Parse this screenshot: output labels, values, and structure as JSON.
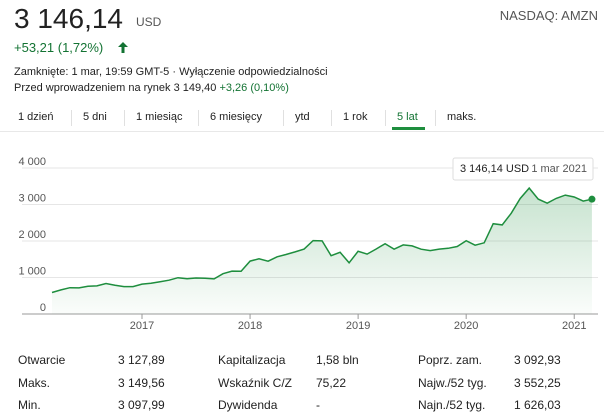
{
  "header": {
    "price": "3 146,14",
    "currency": "USD",
    "exchange": "NASDAQ: AMZN",
    "change": "+53,21 (1,72%)",
    "closed": "Zamknięte: 1 mar, 19:59 GMT-5 · ",
    "disclaimer": "Wyłączenie odpowiedzialności",
    "premarket": "Przed wprowadzeniem na rynek 3 149,40 ",
    "premarket_change": "+3,26 (0,10%)"
  },
  "tabs": [
    "1 dzień",
    "5 dni",
    "1 miesiąc",
    "6 miesięcy",
    "ytd",
    "1 rok",
    "5 lat",
    "maks."
  ],
  "chart_data": {
    "type": "line",
    "x": [
      2016.167,
      2016.25,
      2016.333,
      2016.417,
      2016.5,
      2016.583,
      2016.667,
      2016.75,
      2016.833,
      2016.917,
      2017.0,
      2017.083,
      2017.167,
      2017.25,
      2017.333,
      2017.417,
      2017.5,
      2017.583,
      2017.667,
      2017.75,
      2017.833,
      2017.917,
      2018.0,
      2018.083,
      2018.167,
      2018.25,
      2018.333,
      2018.417,
      2018.5,
      2018.583,
      2018.667,
      2018.75,
      2018.833,
      2018.917,
      2019.0,
      2019.083,
      2019.167,
      2019.25,
      2019.333,
      2019.417,
      2019.5,
      2019.583,
      2019.667,
      2019.75,
      2019.833,
      2019.917,
      2020.0,
      2020.083,
      2020.167,
      2020.25,
      2020.333,
      2020.417,
      2020.5,
      2020.583,
      2020.667,
      2020.75,
      2020.833,
      2020.917,
      2021.0,
      2021.083,
      2021.164
    ],
    "series": [
      {
        "name": "AMZN",
        "color": "#1e8e3e",
        "values": [
          590,
          660,
          720,
          715,
          760,
          770,
          835,
          790,
          750,
          750,
          820,
          845,
          886,
          925,
          995,
          968,
          987,
          980,
          961,
          1105,
          1176,
          1169,
          1450,
          1512,
          1447,
          1566,
          1629,
          1700,
          1777,
          2012,
          2003,
          1598,
          1690,
          1402,
          1718,
          1640,
          1781,
          1926,
          1775,
          1894,
          1867,
          1776,
          1736,
          1777,
          1800,
          1848,
          2008,
          1884,
          1950,
          2474,
          2442,
          2758,
          3164,
          3450,
          3149,
          3036,
          3168,
          3257,
          3206,
          3093,
          3146.14
        ]
      }
    ],
    "xlim": [
      2016.13,
      2021.22
    ],
    "xticks": [
      2017,
      2018,
      2019,
      2020,
      2021
    ],
    "ylim": [
      0,
      4000
    ],
    "yticks": [
      0,
      {
        "value": 1000,
        "label": "1 000"
      },
      {
        "value": 2000,
        "label": "2 000"
      },
      {
        "value": 3000,
        "label": "3 000"
      },
      {
        "value": 4000,
        "label": "4 000"
      }
    ],
    "grid": true,
    "tooltip": {
      "value": "3 146,14 USD",
      "date": "1 mar 2021"
    }
  },
  "stats": {
    "rows": [
      [
        [
          "Otwarcie",
          "3 127,89"
        ],
        [
          "Kapitalizacja",
          "1,58 bln"
        ],
        [
          "Poprz. zam.",
          "3 092,93"
        ]
      ],
      [
        [
          "Maks.",
          "3 149,56"
        ],
        [
          "Wskaźnik C/Z",
          "75,22"
        ],
        [
          "Najw./52 tyg.",
          "3 552,25"
        ]
      ],
      [
        [
          "Min.",
          "3 097,99"
        ],
        [
          "Dywidenda",
          "-"
        ],
        [
          "Najn./52 tyg.",
          "1 626,03"
        ]
      ]
    ]
  }
}
